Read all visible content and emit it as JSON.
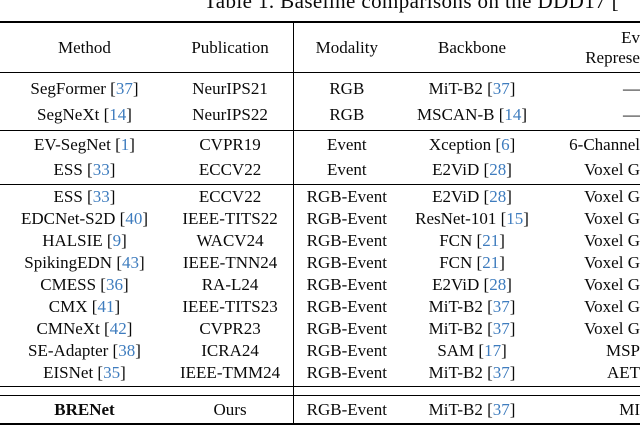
{
  "title": "Table 1. Baseline comparisons on the DDD17 [",
  "colors": {
    "background": "#ffffff",
    "text": "#0a0a0a",
    "citation": "#3E7CBE",
    "rule": "#000000"
  },
  "table": {
    "header": {
      "method": "Method",
      "publication": "Publication",
      "modality": "Modality",
      "backbone": "Backbone",
      "event_rep_line1": "Ev",
      "event_rep_line2": "Represe"
    },
    "groups": [
      {
        "rows": [
          {
            "method": "SegFormer",
            "method_cite": "37",
            "publication": "NeurIPS21",
            "modality": "RGB",
            "backbone": "MiT-B2",
            "backbone_cite": "37",
            "event_rep": "—",
            "bold": false
          },
          {
            "method": "SegNeXt",
            "method_cite": "14",
            "publication": "NeurIPS22",
            "modality": "RGB",
            "backbone": "MSCAN-B",
            "backbone_cite": "14",
            "event_rep": "—",
            "bold": false
          }
        ]
      },
      {
        "rows": [
          {
            "method": "EV-SegNet",
            "method_cite": "1",
            "publication": "CVPR19",
            "modality": "Event",
            "backbone": "Xception",
            "backbone_cite": "6",
            "event_rep": "6-Channel",
            "bold": false
          },
          {
            "method": "ESS",
            "method_cite": "33",
            "publication": "ECCV22",
            "modality": "Event",
            "backbone": "E2ViD",
            "backbone_cite": "28",
            "event_rep": "Voxel G",
            "bold": false
          }
        ]
      },
      {
        "rows": [
          {
            "method": "ESS",
            "method_cite": "33",
            "publication": "ECCV22",
            "modality": "RGB-Event",
            "backbone": "E2ViD",
            "backbone_cite": "28",
            "event_rep": "Voxel G",
            "bold": false
          },
          {
            "method": "EDCNet-S2D",
            "method_cite": "40",
            "publication": "IEEE-TITS22",
            "modality": "RGB-Event",
            "backbone": "ResNet-101",
            "backbone_cite": "15",
            "event_rep": "Voxel G",
            "bold": false
          },
          {
            "method": "HALSIE",
            "method_cite": "9",
            "publication": "WACV24",
            "modality": "RGB-Event",
            "backbone": "FCN",
            "backbone_cite": "21",
            "event_rep": "Voxel G",
            "bold": false
          },
          {
            "method": "SpikingEDN",
            "method_cite": "43",
            "publication": "IEEE-TNN24",
            "modality": "RGB-Event",
            "backbone": "FCN",
            "backbone_cite": "21",
            "event_rep": "Voxel G",
            "bold": false
          },
          {
            "method": "CMESS",
            "method_cite": "36",
            "publication": "RA-L24",
            "modality": "RGB-Event",
            "backbone": "E2ViD",
            "backbone_cite": "28",
            "event_rep": "Voxel G",
            "bold": false
          },
          {
            "method": "CMX",
            "method_cite": "41",
            "publication": "IEEE-TITS23",
            "modality": "RGB-Event",
            "backbone": "MiT-B2",
            "backbone_cite": "37",
            "event_rep": "Voxel G",
            "bold": false
          },
          {
            "method": "CMNeXt",
            "method_cite": "42",
            "publication": "CVPR23",
            "modality": "RGB-Event",
            "backbone": "MiT-B2",
            "backbone_cite": "37",
            "event_rep": "Voxel G",
            "bold": false
          },
          {
            "method": "SE-Adapter",
            "method_cite": "38",
            "publication": "ICRA24",
            "modality": "RGB-Event",
            "backbone": "SAM",
            "backbone_cite": "17",
            "event_rep": "MSP",
            "bold": false
          },
          {
            "method": "EISNet",
            "method_cite": "35",
            "publication": "IEEE-TMM24",
            "modality": "RGB-Event",
            "backbone": "MiT-B2",
            "backbone_cite": "37",
            "event_rep": "AET",
            "bold": false
          }
        ]
      },
      {
        "rows": [
          {
            "method": "BRENet",
            "method_cite": null,
            "publication": "Ours",
            "modality": "RGB-Event",
            "backbone": "MiT-B2",
            "backbone_cite": "37",
            "event_rep": "MI",
            "bold": true
          }
        ]
      }
    ]
  }
}
